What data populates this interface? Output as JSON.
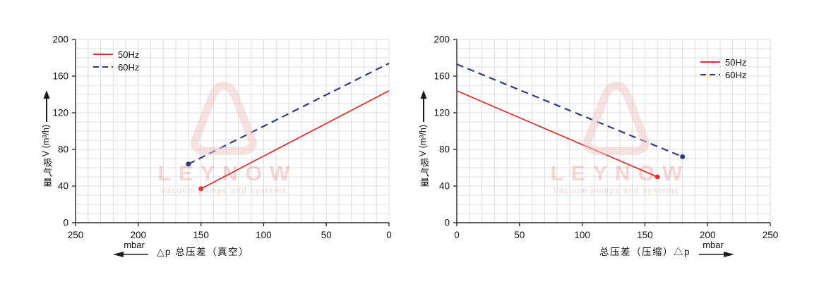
{
  "style": {
    "accent_red": "#e23333",
    "accent_blue": "#333b7d",
    "grid_color": "#dcdcdc",
    "axis_color": "#2b2b2b",
    "text_color": "#111111",
    "watermark_pink": "#eec6c6"
  },
  "watermark": {
    "brand": "LEYNOW",
    "tagline": "Vacuum pumps and systems"
  },
  "charts": [
    {
      "id": "vacuum",
      "chart_data": {
        "type": "line",
        "title": "",
        "xlabel": "△p 总压差（真空）",
        "xunit": "mbar",
        "xunit_arrow": "left",
        "x_direction": "reversed",
        "xlim": [
          0,
          250
        ],
        "xticks": [
          250,
          200,
          150,
          100,
          50,
          0
        ],
        "ylabel_cjk": "吸气量",
        "ylabel_unit": "V (m³/h)",
        "ylim": [
          0,
          200
        ],
        "yticks": [
          0,
          40,
          80,
          120,
          160,
          200
        ],
        "grid": true,
        "grid_step": 10,
        "legend_position": "top-left",
        "series": [
          {
            "name": "50Hz",
            "color": "#e23333",
            "style": "solid",
            "points": [
              [
                150,
                37
              ],
              [
                0,
                144
              ]
            ],
            "marker_at": [
              150,
              37
            ]
          },
          {
            "name": "60Hz",
            "color": "#333b7d",
            "style": "dashed",
            "points": [
              [
                160,
                64
              ],
              [
                0,
                174
              ]
            ],
            "marker_at": [
              160,
              64
            ]
          }
        ]
      }
    },
    {
      "id": "compression",
      "chart_data": {
        "type": "line",
        "title": "",
        "xlabel": "总压差（压缩）△p",
        "xunit": "mbar",
        "xunit_arrow": "right",
        "x_direction": "normal",
        "xlim": [
          0,
          250
        ],
        "xticks": [
          0,
          50,
          100,
          150,
          200,
          250
        ],
        "ylabel_cjk": "吸气量",
        "ylabel_unit": "V (m³/h)",
        "ylim": [
          0,
          200
        ],
        "yticks": [
          0,
          40,
          80,
          120,
          160,
          200
        ],
        "grid": true,
        "grid_step": 10,
        "legend_position": "top-right",
        "series": [
          {
            "name": "50Hz",
            "color": "#e23333",
            "style": "solid",
            "points": [
              [
                0,
                144
              ],
              [
                160,
                50
              ]
            ],
            "marker_at": [
              160,
              50
            ]
          },
          {
            "name": "60Hz",
            "color": "#333b7d",
            "style": "dashed",
            "points": [
              [
                0,
                173
              ],
              [
                180,
                72
              ]
            ],
            "marker_at": [
              180,
              72
            ]
          }
        ]
      }
    }
  ]
}
